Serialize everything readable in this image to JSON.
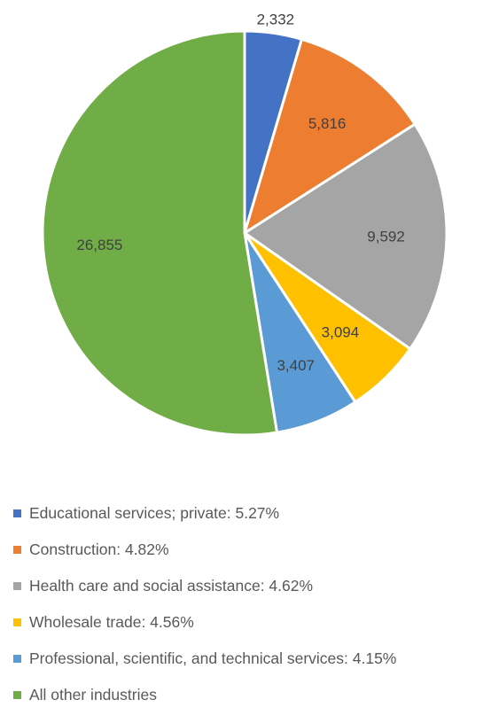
{
  "chart_data": {
    "type": "pie",
    "title": "",
    "categories": [
      "Educational services; private: 5.27%",
      "Construction: 4.82%",
      "Health care and social assistance: 4.62%",
      "Wholesale trade: 4.56%",
      "Professional, scientific, and technical services: 4.15%",
      "All other industries"
    ],
    "values": [
      2332,
      5816,
      9592,
      3094,
      3407,
      26855
    ],
    "data_labels": [
      "2,332",
      "5,816",
      "9,592",
      "3,094",
      "3,407",
      "26,855"
    ],
    "colors": [
      "#4472C4",
      "#ED7D31",
      "#A5A5A5",
      "#FFC000",
      "#5B9BD5",
      "#70AD47"
    ],
    "legend_position": "bottom",
    "start_angle": "12 o'clock, clockwise"
  }
}
